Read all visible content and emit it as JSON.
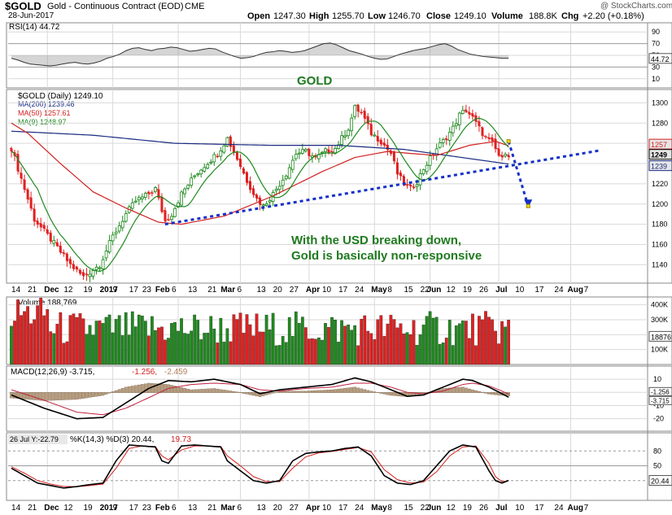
{
  "header": {
    "symbol": "$GOLD",
    "name": "Gold - Continuous Contract (EOD)",
    "exchange": "CME",
    "date": "28-Jun-2017",
    "open_label": "Open",
    "open": "1247.30",
    "high_label": "High",
    "high": "1255.70",
    "low_label": "Low",
    "low": "1246.70",
    "close_label": "Close",
    "close": "1249.10",
    "volume_label": "Volume",
    "volume": "188.8K",
    "chg_label": "Chg",
    "chg": "+2.20 (+0.18%)",
    "watermark": "@ StockCharts.com"
  },
  "annotations": {
    "gold_label": "GOLD",
    "comment_line1": "With the USD breaking down,",
    "comment_line2": "Gold is basically non-responsive"
  },
  "colors": {
    "up": "#1f8a1f",
    "down": "#e02020",
    "ma200": "#1a2a80",
    "ma50": "#d32020",
    "ma9": "#1f8a1f",
    "trend": "#1530c8",
    "grid": "#d9d9d9",
    "panel_border": "#888888",
    "price_tag": "#e6e6e6"
  },
  "chart_data": [
    {
      "type": "line",
      "panel": "rsi",
      "legend": "RSI(14) 44.72",
      "ylim": [
        0,
        100
      ],
      "yticks": [
        "90",
        "70",
        "50",
        "30",
        "10"
      ],
      "last_value_tag": "44.72",
      "values": [
        45,
        42,
        38,
        35,
        34,
        33,
        32,
        33,
        35,
        37,
        38,
        36,
        35,
        37,
        40,
        45,
        48,
        52,
        58,
        62,
        63,
        60,
        58,
        61,
        62,
        64,
        63,
        60,
        57,
        58,
        60,
        62,
        61,
        56,
        52,
        48,
        45,
        46,
        48,
        52,
        55,
        56,
        58,
        57,
        55,
        56,
        58,
        62,
        66,
        70,
        71,
        68,
        63,
        58,
        55,
        52,
        48,
        45,
        43,
        44,
        48,
        52,
        55,
        58,
        60,
        62,
        65,
        68,
        70,
        66,
        60,
        56,
        52,
        50,
        48,
        47,
        46,
        45,
        45
      ]
    },
    {
      "type": "candlestick",
      "panel": "price",
      "legend": [
        "$GOLD (Daily) 1249.10",
        "MA(200) 1239.46",
        "MA(50) 1257.61",
        "MA(9) 1248.97"
      ],
      "ylim": [
        1125,
        1310
      ],
      "yticks": [
        1300,
        1280,
        1260,
        1240,
        1220,
        1200,
        1180,
        1160,
        1140
      ],
      "right_tags": [
        {
          "label": "1257",
          "value": 1257.6
        },
        {
          "label": "1249",
          "value": 1249.1
        },
        {
          "label": "1239",
          "value": 1239.5
        }
      ],
      "x_labels": [
        "14",
        "21",
        "Dec",
        "12",
        "19",
        "2017",
        "9",
        "17",
        "23",
        "Feb",
        "6",
        "13",
        "21",
        "Mar",
        "6",
        "13",
        "20",
        "27",
        "Apr",
        "10",
        "17",
        "24",
        "May",
        "8",
        "15",
        "22",
        "Jun",
        "12",
        "19",
        "26",
        "Jul",
        "10",
        "17",
        "24",
        "Aug",
        "7"
      ],
      "keypoints": [
        [
          0,
          1255
        ],
        [
          3,
          1225
        ],
        [
          7,
          1185
        ],
        [
          12,
          1165
        ],
        [
          18,
          1140
        ],
        [
          22,
          1128
        ],
        [
          27,
          1140
        ],
        [
          31,
          1168
        ],
        [
          35,
          1190
        ],
        [
          38,
          1203
        ],
        [
          41,
          1208
        ],
        [
          44,
          1215
        ],
        [
          47,
          1183
        ],
        [
          49,
          1190
        ],
        [
          52,
          1210
        ],
        [
          56,
          1228
        ],
        [
          59,
          1238
        ],
        [
          63,
          1250
        ],
        [
          66,
          1265
        ],
        [
          69,
          1245
        ],
        [
          72,
          1223
        ],
        [
          75,
          1205
        ],
        [
          77,
          1198
        ],
        [
          80,
          1210
        ],
        [
          84,
          1230
        ],
        [
          87,
          1250
        ],
        [
          90,
          1252
        ],
        [
          93,
          1245
        ],
        [
          96,
          1252
        ],
        [
          99,
          1255
        ],
        [
          101,
          1265
        ],
        [
          103,
          1275
        ],
        [
          105,
          1295
        ],
        [
          107,
          1290
        ],
        [
          110,
          1270
        ],
        [
          113,
          1262
        ],
        [
          116,
          1250
        ],
        [
          118,
          1230
        ],
        [
          120,
          1220
        ],
        [
          122,
          1215
        ],
        [
          124,
          1222
        ],
        [
          126,
          1235
        ],
        [
          128,
          1245
        ],
        [
          130,
          1255
        ],
        [
          132,
          1262
        ],
        [
          135,
          1275
        ],
        [
          137,
          1288
        ],
        [
          139,
          1293
        ],
        [
          141,
          1285
        ],
        [
          143,
          1275
        ],
        [
          145,
          1265
        ],
        [
          147,
          1260
        ],
        [
          149,
          1248
        ],
        [
          150,
          1244
        ],
        [
          151,
          1252
        ],
        [
          152,
          1249
        ]
      ],
      "ohlc_count": 153,
      "ma200": [
        [
          0,
          1272
        ],
        [
          25,
          1268
        ],
        [
          50,
          1260
        ],
        [
          80,
          1258
        ],
        [
          100,
          1258
        ],
        [
          120,
          1254
        ],
        [
          152,
          1239.5
        ]
      ],
      "ma50": [
        [
          0,
          1280
        ],
        [
          5,
          1270
        ],
        [
          15,
          1240
        ],
        [
          25,
          1212
        ],
        [
          35,
          1196
        ],
        [
          45,
          1182
        ],
        [
          52,
          1180
        ],
        [
          65,
          1188
        ],
        [
          80,
          1208
        ],
        [
          95,
          1232
        ],
        [
          105,
          1246
        ],
        [
          115,
          1252
        ],
        [
          122,
          1250
        ],
        [
          130,
          1248
        ],
        [
          140,
          1258
        ],
        [
          148,
          1262
        ],
        [
          152,
          1257.6
        ]
      ],
      "trendline": {
        "points": [
          [
            47,
            1180
          ],
          [
            180,
            1253
          ]
        ],
        "target_arrow": {
          "from": [
            152,
            1262
          ],
          "to": [
            158,
            1198
          ]
        }
      }
    },
    {
      "type": "bar",
      "panel": "volume",
      "legend": "Volume 188,769",
      "yticks": [
        "400K",
        "300K",
        "200K",
        "100K"
      ],
      "last_value_tag": "188769",
      "ylim": [
        0,
        420000
      ]
    },
    {
      "type": "line",
      "panel": "macd",
      "legend": [
        "MACD(12,26,9) -3.715,",
        "-1.256,",
        "-2.459"
      ],
      "ylim": [
        -27,
        15
      ],
      "yticks": [
        "10",
        "0",
        "-10",
        "-20"
      ],
      "tags": [
        "-1.256",
        "-3.715"
      ],
      "macd": [
        [
          0,
          -2
        ],
        [
          10,
          -12
        ],
        [
          20,
          -20
        ],
        [
          28,
          -19
        ],
        [
          35,
          -8
        ],
        [
          42,
          3
        ],
        [
          48,
          9
        ],
        [
          55,
          8
        ],
        [
          62,
          10
        ],
        [
          70,
          6
        ],
        [
          76,
          -1
        ],
        [
          82,
          2
        ],
        [
          90,
          4
        ],
        [
          98,
          6
        ],
        [
          105,
          11
        ],
        [
          110,
          8
        ],
        [
          116,
          2
        ],
        [
          121,
          -3
        ],
        [
          126,
          -2
        ],
        [
          132,
          4
        ],
        [
          138,
          10
        ],
        [
          141,
          9
        ],
        [
          146,
          4
        ],
        [
          150,
          -1
        ],
        [
          152,
          -3.7
        ]
      ],
      "signal": [
        [
          0,
          2
        ],
        [
          10,
          -6
        ],
        [
          20,
          -15
        ],
        [
          28,
          -17
        ],
        [
          35,
          -12
        ],
        [
          42,
          -4
        ],
        [
          48,
          3
        ],
        [
          55,
          6
        ],
        [
          62,
          7
        ],
        [
          70,
          6
        ],
        [
          76,
          2
        ],
        [
          82,
          1
        ],
        [
          90,
          3
        ],
        [
          98,
          4
        ],
        [
          105,
          7
        ],
        [
          110,
          7
        ],
        [
          116,
          4
        ],
        [
          121,
          0
        ],
        [
          126,
          -1
        ],
        [
          132,
          1
        ],
        [
          138,
          6
        ],
        [
          141,
          7
        ],
        [
          146,
          5
        ],
        [
          150,
          1
        ],
        [
          152,
          -1.3
        ]
      ]
    },
    {
      "type": "line",
      "panel": "stochastic",
      "legend": [
        "%K(14,3) %D(3) 20.44,",
        "19.73"
      ],
      "hover_label": "26 Jul Y:-22.79",
      "ylim": [
        0,
        100
      ],
      "yticks": [
        "80",
        "50",
        "20"
      ],
      "tag": "20.44",
      "k": [
        [
          0,
          45
        ],
        [
          4,
          30
        ],
        [
          8,
          15
        ],
        [
          12,
          10
        ],
        [
          16,
          5
        ],
        [
          20,
          8
        ],
        [
          24,
          12
        ],
        [
          28,
          15
        ],
        [
          32,
          60
        ],
        [
          36,
          92
        ],
        [
          40,
          90
        ],
        [
          44,
          88
        ],
        [
          46,
          60
        ],
        [
          48,
          55
        ],
        [
          52,
          90
        ],
        [
          56,
          92
        ],
        [
          60,
          90
        ],
        [
          64,
          88
        ],
        [
          66,
          60
        ],
        [
          70,
          40
        ],
        [
          74,
          20
        ],
        [
          78,
          15
        ],
        [
          82,
          20
        ],
        [
          86,
          60
        ],
        [
          90,
          75
        ],
        [
          94,
          78
        ],
        [
          98,
          80
        ],
        [
          102,
          85
        ],
        [
          106,
          88
        ],
        [
          110,
          70
        ],
        [
          114,
          30
        ],
        [
          118,
          15
        ],
        [
          122,
          12
        ],
        [
          126,
          20
        ],
        [
          130,
          50
        ],
        [
          134,
          80
        ],
        [
          138,
          92
        ],
        [
          142,
          88
        ],
        [
          146,
          40
        ],
        [
          148,
          20
        ],
        [
          150,
          15
        ],
        [
          152,
          20.4
        ]
      ],
      "d": [
        [
          0,
          48
        ],
        [
          4,
          35
        ],
        [
          8,
          20
        ],
        [
          12,
          13
        ],
        [
          16,
          8
        ],
        [
          20,
          8
        ],
        [
          24,
          10
        ],
        [
          28,
          13
        ],
        [
          32,
          45
        ],
        [
          36,
          85
        ],
        [
          40,
          90
        ],
        [
          44,
          89
        ],
        [
          46,
          70
        ],
        [
          48,
          62
        ],
        [
          52,
          82
        ],
        [
          56,
          90
        ],
        [
          60,
          90
        ],
        [
          64,
          89
        ],
        [
          66,
          70
        ],
        [
          70,
          50
        ],
        [
          74,
          28
        ],
        [
          78,
          18
        ],
        [
          82,
          18
        ],
        [
          86,
          45
        ],
        [
          90,
          68
        ],
        [
          94,
          76
        ],
        [
          98,
          79
        ],
        [
          102,
          83
        ],
        [
          106,
          87
        ],
        [
          110,
          78
        ],
        [
          114,
          42
        ],
        [
          118,
          22
        ],
        [
          122,
          15
        ],
        [
          126,
          17
        ],
        [
          130,
          38
        ],
        [
          134,
          70
        ],
        [
          138,
          88
        ],
        [
          142,
          90
        ],
        [
          146,
          55
        ],
        [
          148,
          28
        ],
        [
          150,
          18
        ],
        [
          152,
          19.7
        ]
      ]
    }
  ]
}
